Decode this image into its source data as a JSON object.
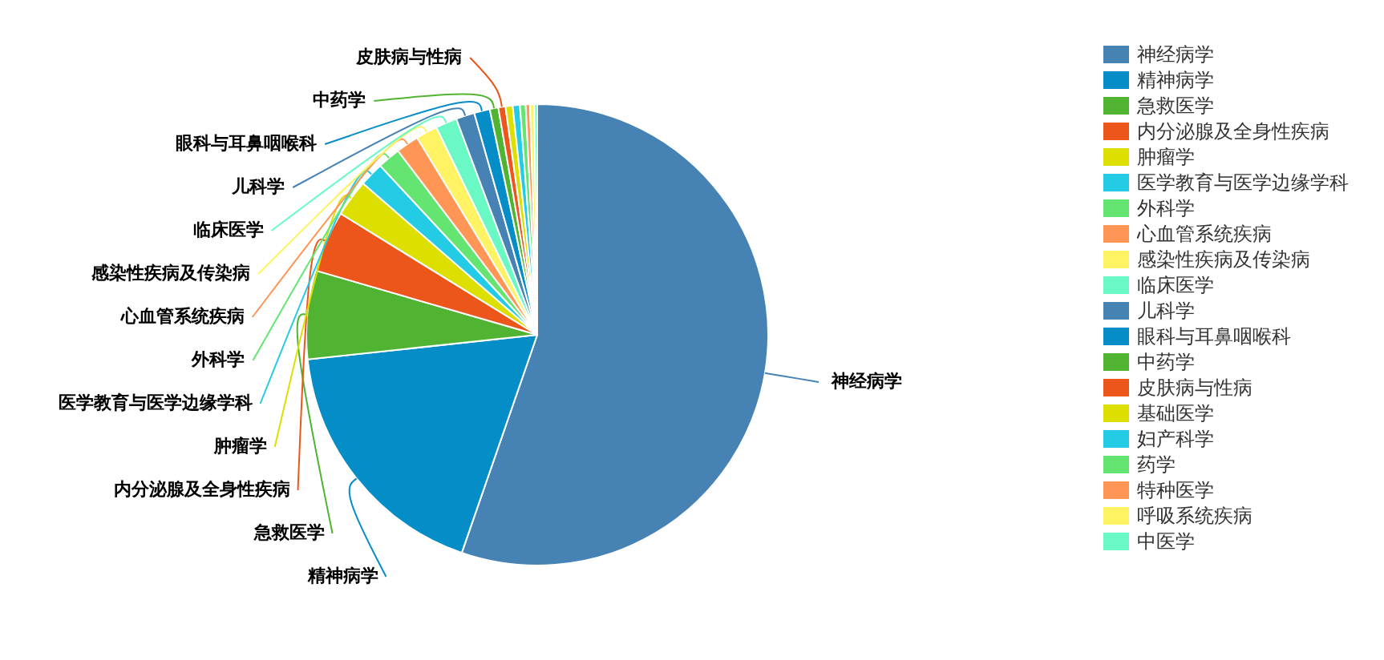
{
  "chart_data": {
    "type": "pie",
    "categories": [
      "神经病学",
      "精神病学",
      "急救医学",
      "内分泌腺及全身性疾病",
      "肿瘤学",
      "医学教育与医学边缘学科",
      "外科学",
      "心血管系统疾病",
      "感染性疾病及传染病",
      "临床医学",
      "儿科学",
      "眼科与耳鼻咽喉科",
      "中药学",
      "皮肤病与性病",
      "基础医学",
      "妇产科学",
      "药学",
      "特种医学",
      "呼吸系统疾病",
      "中医学"
    ],
    "values": [
      55.3,
      18.0,
      6.2,
      4.3,
      2.6,
      1.7,
      1.6,
      1.6,
      1.5,
      1.5,
      1.3,
      1.1,
      0.6,
      0.5,
      0.5,
      0.5,
      0.4,
      0.3,
      0.3,
      0.2
    ],
    "colors": [
      "#4682b4",
      "#058dc7",
      "#50b432",
      "#ed561b",
      "#dddf00",
      "#24cbe5",
      "#64e572",
      "#ff9655",
      "#fff263",
      "#6af9c4",
      "#4682b4",
      "#058dc7",
      "#50b432",
      "#ed561b",
      "#dddf00",
      "#24cbe5",
      "#64e572",
      "#ff9655",
      "#fff263",
      "#6af9c4"
    ],
    "legend": "right"
  }
}
